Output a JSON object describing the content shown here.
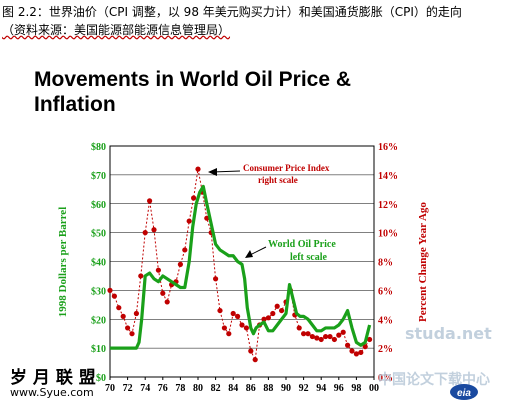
{
  "caption": {
    "line1": "图 2.2：世界油价（CPI 调整，以 98 年美元购买力计）和美国通货膨胀（CPI）的走向",
    "line2": "（资料来源：美国能源部能源信息管理局）"
  },
  "watermarks": {
    "site_name": "岁 月 联 盟",
    "site_url": "www.Syue.com",
    "studa": "studa.net",
    "download_center": "中国论文下载中心",
    "logo_text": "eia"
  },
  "chart_data": {
    "type": "line",
    "title_line1": "Movements in World Oil Price &",
    "title_line2": "Inflation",
    "ylabel_left": "1998 Dollars per Barrel",
    "ylabel_right": "Percent Change Year Ago",
    "y_left_ticks": [
      "$0",
      "$10",
      "$20",
      "$30",
      "$40",
      "$50",
      "$60",
      "$70",
      "$80"
    ],
    "y_right_ticks": [
      "0%",
      "2%",
      "4%",
      "6%",
      "8%",
      "10%",
      "12%",
      "14%",
      "16%"
    ],
    "x_ticks": [
      "70",
      "72",
      "74",
      "76",
      "78",
      "80",
      "82",
      "84",
      "86",
      "88",
      "90",
      "92",
      "94",
      "96",
      "98",
      "00"
    ],
    "ylim_left": [
      0,
      80
    ],
    "ylim_right": [
      0,
      16
    ],
    "xlim": [
      1970,
      2000
    ],
    "grid": "horizontal",
    "annotations": {
      "cpi_line1": "Consumer Price Index",
      "cpi_line2": "right scale",
      "oil_line1": "World Oil Price",
      "oil_line2": "left scale"
    },
    "series": [
      {
        "name": "World Oil Price",
        "axis": "left",
        "color": "#1aa01a",
        "x": [
          1970,
          1973.0,
          1973.3,
          1973.6,
          1974.0,
          1974.5,
          1975.0,
          1975.5,
          1976.0,
          1976.5,
          1977.0,
          1977.5,
          1978.0,
          1978.5,
          1979.0,
          1979.4,
          1979.8,
          1980.2,
          1980.6,
          1981.0,
          1981.5,
          1982.0,
          1982.5,
          1983.0,
          1983.5,
          1984.0,
          1984.5,
          1985.0,
          1985.3,
          1985.6,
          1986.0,
          1986.3,
          1986.6,
          1987.0,
          1987.5,
          1988.0,
          1988.5,
          1989.0,
          1989.5,
          1990.0,
          1990.4,
          1990.8,
          1991.2,
          1991.6,
          1992.0,
          1992.5,
          1993.0,
          1993.5,
          1994.0,
          1994.5,
          1995.0,
          1995.5,
          1996.0,
          1996.5,
          1997.0,
          1997.5,
          1998.0,
          1998.5,
          1999.0,
          1999.5
        ],
        "values": [
          10,
          10,
          12,
          20,
          35,
          36,
          34,
          33,
          35,
          34,
          33,
          32,
          31,
          31,
          40,
          52,
          60,
          64,
          66,
          60,
          53,
          46,
          44,
          43,
          42,
          42,
          40,
          39,
          34,
          24,
          17,
          15,
          17,
          18,
          19,
          16,
          16,
          18,
          20,
          22,
          32,
          27,
          22,
          21,
          21,
          20,
          18,
          16,
          16,
          17,
          17,
          17,
          18,
          20,
          23,
          17,
          12,
          11,
          12,
          18
        ]
      },
      {
        "name": "Consumer Price Index",
        "axis": "right",
        "color": "#c00000",
        "x": [
          1970,
          1970.5,
          1971.0,
          1971.5,
          1972.0,
          1972.5,
          1973.0,
          1973.5,
          1974.0,
          1974.5,
          1975.0,
          1975.5,
          1976.0,
          1976.5,
          1977.0,
          1977.5,
          1978.0,
          1978.5,
          1979.0,
          1979.5,
          1980.0,
          1980.5,
          1981.0,
          1981.5,
          1982.0,
          1982.5,
          1983.0,
          1983.5,
          1984.0,
          1984.5,
          1985.0,
          1985.5,
          1986.0,
          1986.5,
          1987.0,
          1987.5,
          1988.0,
          1988.5,
          1989.0,
          1989.5,
          1990.0,
          1990.5,
          1991.0,
          1991.5,
          1992.0,
          1992.5,
          1993.0,
          1993.5,
          1994.0,
          1994.5,
          1995.0,
          1995.5,
          1996.0,
          1996.5,
          1997.0,
          1997.5,
          1998.0,
          1998.5,
          1999.0,
          1999.5
        ],
        "values": [
          6.0,
          5.6,
          4.8,
          4.2,
          3.4,
          3.0,
          4.4,
          7.0,
          10.0,
          12.2,
          10.2,
          7.4,
          5.8,
          5.2,
          6.4,
          6.6,
          7.8,
          8.8,
          10.8,
          12.4,
          14.4,
          12.8,
          11.0,
          10.0,
          6.8,
          4.6,
          3.4,
          3.0,
          4.4,
          4.2,
          3.6,
          3.4,
          1.8,
          1.2,
          3.6,
          4.0,
          4.1,
          4.4,
          4.9,
          4.6,
          5.2,
          6.0,
          4.3,
          3.4,
          3.0,
          3.0,
          2.8,
          2.7,
          2.6,
          2.8,
          2.8,
          2.6,
          2.9,
          3.1,
          2.2,
          1.8,
          1.6,
          1.7,
          2.1,
          2.6
        ]
      }
    ]
  }
}
